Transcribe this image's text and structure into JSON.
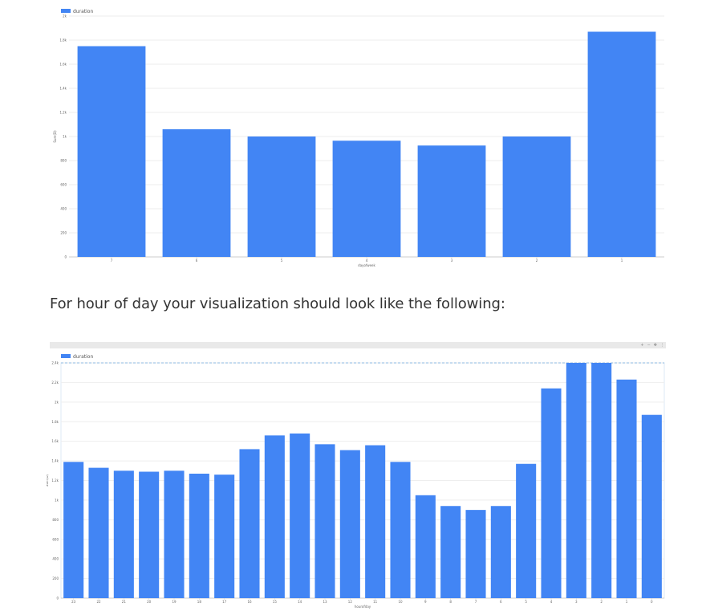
{
  "caption": "For hour of day your visualization should look like the following:",
  "colors": {
    "bar": "#4285f4",
    "grid": "#eeeeee",
    "axis": "#cccccc",
    "selection": "#6fa8dc"
  },
  "chart_data": [
    {
      "type": "bar",
      "legend": [
        "duration"
      ],
      "legend_position": "top-left",
      "xlabel": "dayofweek",
      "ylabel": "Sum(D)",
      "categories": [
        "7",
        "6",
        "5",
        "4",
        "3",
        "2",
        "1"
      ],
      "values": [
        1750,
        1060,
        1000,
        965,
        925,
        1000,
        1870
      ],
      "ylim": [
        0,
        2000
      ],
      "yticks": [
        0,
        200,
        400,
        600,
        800,
        1000,
        1200,
        1400,
        1600,
        1800,
        2000
      ],
      "ytick_labels": [
        "0",
        "200",
        "400",
        "600",
        "800",
        "1k",
        "1.2k",
        "1.4k",
        "1.6k",
        "1.8k",
        "2k"
      ],
      "grid": true
    },
    {
      "type": "bar",
      "legend": [
        "duration"
      ],
      "legend_position": "top-left",
      "xlabel": "hourofday",
      "ylabel": "Sum(D)",
      "categories": [
        "23",
        "22",
        "21",
        "20",
        "19",
        "18",
        "17",
        "16",
        "15",
        "14",
        "13",
        "12",
        "11",
        "10",
        "9",
        "8",
        "7",
        "6",
        "5",
        "4",
        "3",
        "2",
        "1",
        "0"
      ],
      "values": [
        1390,
        1330,
        1300,
        1290,
        1300,
        1270,
        1260,
        1520,
        1660,
        1680,
        1570,
        1510,
        1560,
        1390,
        1050,
        940,
        900,
        940,
        1370,
        2140,
        2400,
        2400,
        2230,
        1870
      ],
      "ylim": [
        0,
        2400
      ],
      "yticks": [
        0,
        200,
        400,
        600,
        800,
        1000,
        1200,
        1400,
        1600,
        1800,
        2000,
        2200,
        2400
      ],
      "ytick_labels": [
        "0",
        "200",
        "400",
        "600",
        "800",
        "1k",
        "1.2k",
        "1.4k",
        "1.6k",
        "1.8k",
        "2k",
        "2.2k",
        "2.4k"
      ],
      "grid": true
    }
  ]
}
